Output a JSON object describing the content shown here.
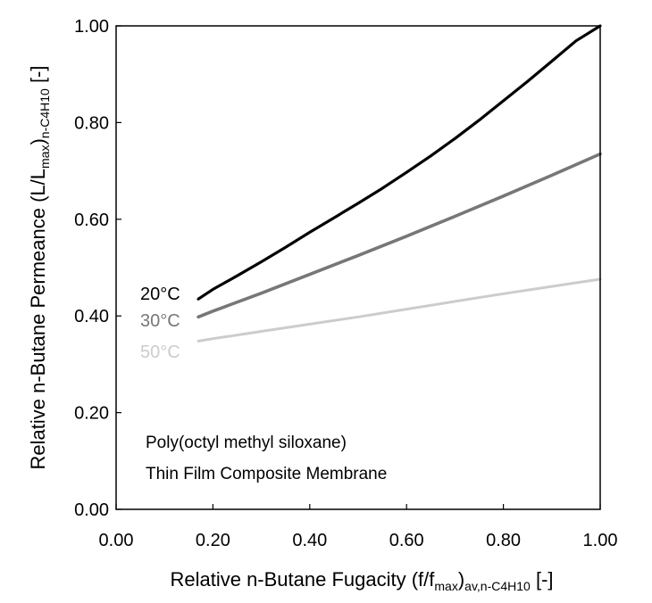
{
  "chart_data": {
    "type": "line",
    "title": "",
    "xlabel": {
      "main": "Relative n-Butane Fugacity (f/f",
      "sub1": "max",
      "mid": ")",
      "sub2": "av,n-C4H10",
      "tail": " [-]"
    },
    "ylabel": {
      "main": "Relative n-Butane Permeance (L/L",
      "sub1": "max",
      "mid": ")",
      "sub2": "n-C4H10",
      "tail": " [-]"
    },
    "xlim": [
      0,
      1
    ],
    "ylim": [
      0,
      1
    ],
    "xticks": [
      0,
      0.2,
      0.4,
      0.6,
      0.8,
      1.0
    ],
    "xtick_labels": [
      "0.00",
      "0.20",
      "0.40",
      "0.60",
      "0.80",
      "1.00"
    ],
    "yticks": [
      0,
      0.2,
      0.4,
      0.6,
      0.8,
      1.0
    ],
    "ytick_labels": [
      "0.00",
      "0.20",
      "0.40",
      "0.60",
      "0.80",
      "1.00"
    ],
    "grid": false,
    "legend": "inline-left",
    "series": [
      {
        "name": "20°C",
        "color": "#000000",
        "x": [
          0.17,
          0.2,
          0.25,
          0.3,
          0.35,
          0.4,
          0.45,
          0.5,
          0.55,
          0.6,
          0.65,
          0.7,
          0.75,
          0.8,
          0.85,
          0.9,
          0.95,
          1.0
        ],
        "y": [
          0.435,
          0.455,
          0.483,
          0.512,
          0.542,
          0.573,
          0.603,
          0.633,
          0.664,
          0.697,
          0.731,
          0.767,
          0.805,
          0.845,
          0.885,
          0.927,
          0.969,
          1.0
        ]
      },
      {
        "name": "30°C",
        "color": "#777777",
        "x": [
          0.17,
          0.2,
          0.3,
          0.4,
          0.5,
          0.6,
          0.7,
          0.8,
          0.9,
          1.0
        ],
        "y": [
          0.398,
          0.41,
          0.447,
          0.486,
          0.525,
          0.565,
          0.606,
          0.648,
          0.691,
          0.735
        ]
      },
      {
        "name": "50°C",
        "color": "#cccccc",
        "x": [
          0.17,
          0.2,
          0.3,
          0.4,
          0.5,
          0.6,
          0.7,
          0.8,
          0.9,
          1.0
        ],
        "y": [
          0.348,
          0.353,
          0.368,
          0.383,
          0.398,
          0.414,
          0.43,
          0.446,
          0.461,
          0.476
        ]
      }
    ],
    "annotations": [
      "Poly(octyl methyl siloxane)",
      "Thin Film Composite Membrane"
    ]
  }
}
